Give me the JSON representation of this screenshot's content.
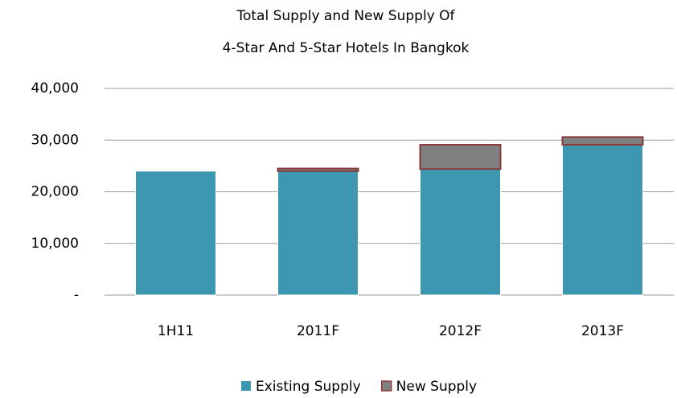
{
  "chart_data": {
    "type": "stacked_bar",
    "title": [
      "Total Supply and New Supply Of",
      "4-Star And 5-Star Hotels In Bangkok"
    ],
    "categories": [
      "1H11",
      "2011F",
      "2012F",
      "2013F"
    ],
    "series": [
      {
        "name": "Existing Supply",
        "color": "#3d97b0",
        "values": [
          24000,
          24000,
          24400,
          29100
        ]
      },
      {
        "name": "New Supply",
        "color": "#808080",
        "values": [
          0,
          500,
          4700,
          1500
        ]
      }
    ],
    "ylim": [
      0,
      40000
    ],
    "yticks": [
      {
        "value": 0,
        "label": "-"
      },
      {
        "value": 10000,
        "label": "10,000"
      },
      {
        "value": 20000,
        "label": "20,000"
      },
      {
        "value": 30000,
        "label": "30,000"
      },
      {
        "value": 40000,
        "label": "40,000"
      }
    ],
    "grid": true,
    "legend": "bottom"
  }
}
